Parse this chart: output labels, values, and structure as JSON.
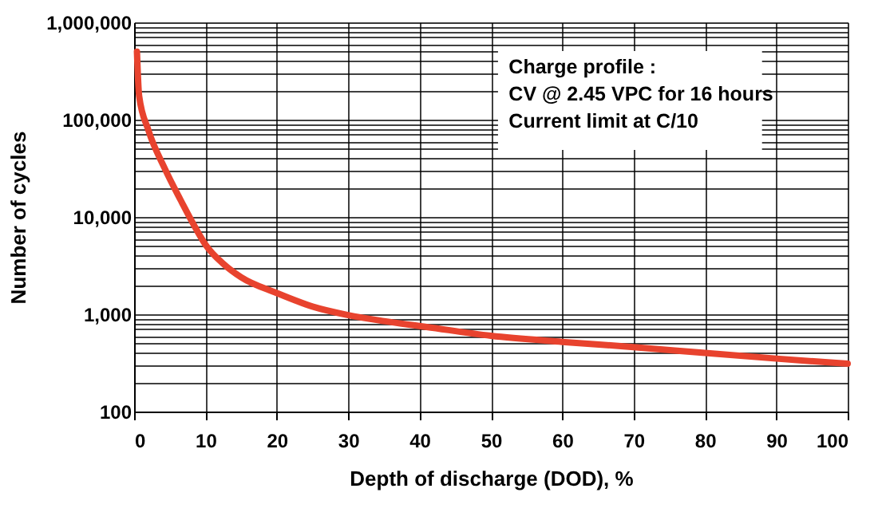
{
  "chart_data": {
    "type": "line",
    "xlabel": "Depth of discharge (DOD), %",
    "ylabel": "Number of cycles",
    "annotations": [
      "Charge profile :\nCV @ 2.45 VPC for 16 hours\nCurrent limit at C/10"
    ],
    "series": [
      {
        "color": "#e8432e",
        "x": [
          0.4,
          0.7,
          2,
          4.25,
          6.5,
          8.7,
          10,
          12.5,
          15,
          20,
          25,
          30,
          35,
          41,
          50,
          60,
          70,
          80,
          90,
          100
        ],
        "values": [
          500000,
          176000,
          78000,
          32000,
          15000,
          7500,
          5200,
          3300,
          2400,
          1650,
          1200,
          980,
          850,
          740,
          600,
          520,
          460,
          400,
          350,
          310
        ]
      }
    ],
    "log": "y",
    "xlim": [
      0,
      100
    ],
    "ylim": [
      100,
      1000000
    ],
    "xticks": [
      0,
      10,
      20,
      30,
      40,
      50,
      60,
      70,
      80,
      90,
      100
    ],
    "yticks": [
      {
        "value": 100,
        "label": "100"
      },
      {
        "value": 200,
        "label": null
      },
      {
        "value": 300,
        "label": null
      },
      {
        "value": 400,
        "label": null
      },
      {
        "value": 500,
        "label": null
      },
      {
        "value": 600,
        "label": null
      },
      {
        "value": 700,
        "label": null
      },
      {
        "value": 800,
        "label": null
      },
      {
        "value": 900,
        "label": null
      },
      {
        "value": 1000,
        "label": "1,000"
      },
      {
        "value": 2000,
        "label": null
      },
      {
        "value": 3000,
        "label": null
      },
      {
        "value": 4000,
        "label": null
      },
      {
        "value": 5000,
        "label": null
      },
      {
        "value": 6000,
        "label": null
      },
      {
        "value": 7000,
        "label": null
      },
      {
        "value": 8000,
        "label": null
      },
      {
        "value": 9000,
        "label": null
      },
      {
        "value": 10000,
        "label": "10,000"
      },
      {
        "value": 20000,
        "label": null
      },
      {
        "value": 30000,
        "label": null
      },
      {
        "value": 40000,
        "label": null
      },
      {
        "value": 50000,
        "label": null
      },
      {
        "value": 60000,
        "label": null
      },
      {
        "value": 70000,
        "label": null
      },
      {
        "value": 80000,
        "label": null
      },
      {
        "value": 90000,
        "label": null
      },
      {
        "value": 100000,
        "label": "100,000"
      },
      {
        "value": 200000,
        "label": null
      },
      {
        "value": 300000,
        "label": null
      },
      {
        "value": 400000,
        "label": null
      },
      {
        "value": 500000,
        "label": null
      },
      {
        "value": 600000,
        "label": null
      },
      {
        "value": 700000,
        "label": null
      },
      {
        "value": 800000,
        "label": null
      },
      {
        "value": 900000,
        "label": null
      },
      {
        "value": 1000000,
        "label": "1,000,000"
      }
    ],
    "grid": true,
    "marker": "none",
    "line_style": "solid"
  }
}
